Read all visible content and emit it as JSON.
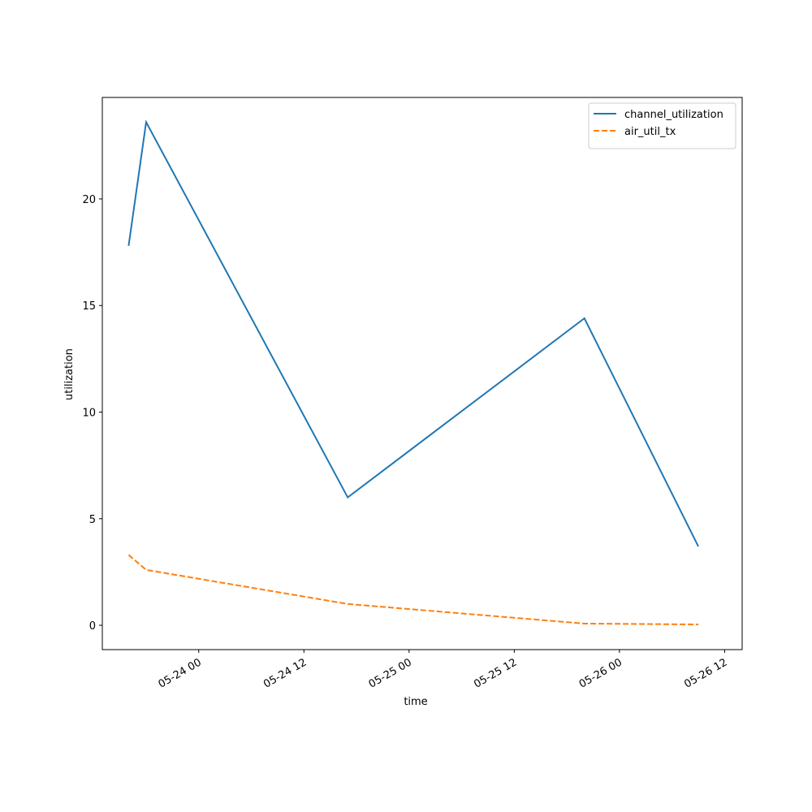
{
  "chart_data": {
    "type": "line",
    "xlabel": "time",
    "ylabel": "utilization",
    "x": [
      "05-23 16",
      "05-23 18",
      "05-24 17",
      "05-25 20",
      "05-26 09"
    ],
    "series": [
      {
        "name": "channel_utilization",
        "color": "#1f77b4",
        "dash": "solid",
        "values": [
          17.8,
          23.6,
          6.0,
          14.4,
          3.7
        ]
      },
      {
        "name": "air_util_tx",
        "color": "#ff7f0e",
        "dash": "dashed",
        "values": [
          3.3,
          2.6,
          1.0,
          0.08,
          0.04
        ]
      }
    ],
    "xlim": [
      "05-23 13",
      "05-26 14"
    ],
    "xticks": [
      "05-24 00",
      "05-24 12",
      "05-25 00",
      "05-25 12",
      "05-26 00",
      "05-26 12"
    ],
    "ylim": [
      -1.14,
      24.76
    ],
    "yticks": [
      0,
      5,
      10,
      15,
      20
    ],
    "legend": "upper right",
    "grid": false
  }
}
